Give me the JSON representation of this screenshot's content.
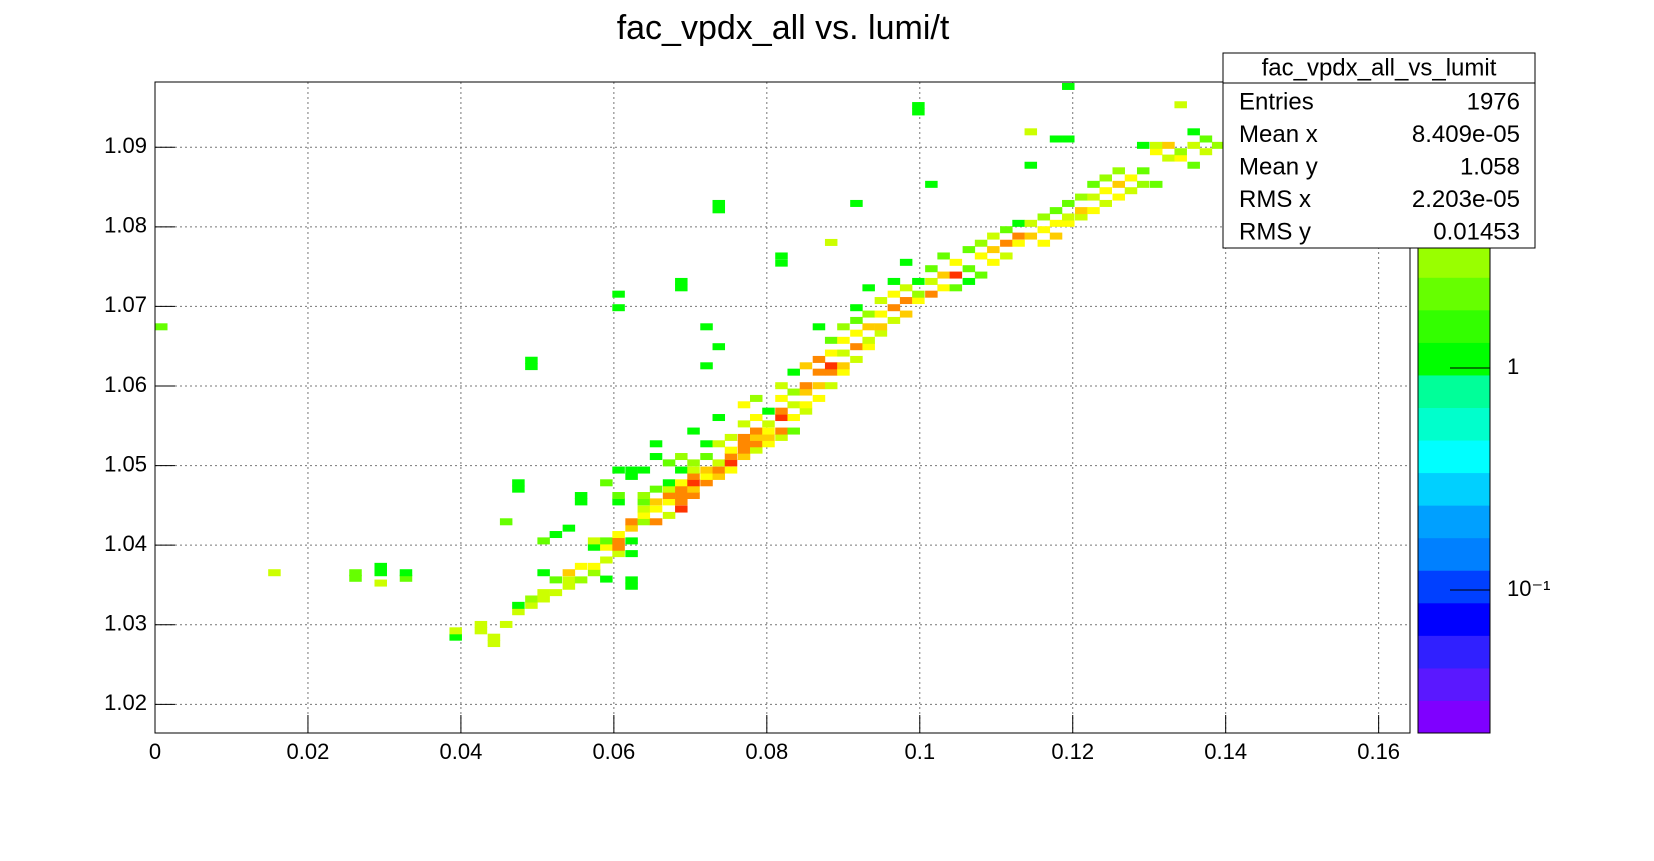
{
  "chart_data": {
    "type": "heatmap",
    "title": "fac_vpdx_all vs. lumi/t",
    "xlim": [
      0,
      0.1641
    ],
    "xticks": [
      0,
      0.02,
      0.04,
      0.06,
      0.08,
      0.1,
      0.12,
      0.14,
      0.16
    ],
    "ylim": [
      1.0164,
      1.0982
    ],
    "yticks": [
      1.02,
      1.03,
      1.04,
      1.05,
      1.06,
      1.07,
      1.08,
      1.09
    ],
    "grid": true,
    "zlog": true,
    "zlim": [
      0.0227,
      19.4
    ],
    "zticks": [
      {
        "value": 0.1,
        "label": "10⁻¹"
      },
      1
    ],
    "palette": [
      "#7f00ff",
      "#5a18ff",
      "#3020ff",
      "#0000ff",
      "#0040ff",
      "#0080ff",
      "#00a0ff",
      "#00d0ff",
      "#00ffff",
      "#00ffcc",
      "#00ff99",
      "#00ff00",
      "#33ff00",
      "#66ff00",
      "#99ff00",
      "#ccff00",
      "#ffff00",
      "#ffcc00",
      "#ff8800",
      "#ff3300"
    ],
    "x": [
      0,
      0.0148,
      0.0254,
      0.0254,
      0.0287,
      0.0287,
      0.0287,
      0.032,
      0.032,
      0.0385,
      0.0385,
      0.0418,
      0.0418,
      0.0435,
      0.0435,
      0.0451,
      0.0451,
      0.0467,
      0.0467,
      0.0467,
      0.0467,
      0.0484,
      0.0484,
      0.0484,
      0.0484,
      0.05,
      0.05,
      0.05,
      0.05,
      0.0516,
      0.0516,
      0.0516,
      0.0533,
      0.0533,
      0.0533,
      0.0533,
      0.0549,
      0.0549,
      0.0549,
      0.0549,
      0.0566,
      0.0566,
      0.0566,
      0.0566,
      0.0582,
      0.0582,
      0.0582,
      0.0582,
      0.0582,
      0.0598,
      0.0598,
      0.0598,
      0.0598,
      0.0598,
      0.0598,
      0.0598,
      0.0598,
      0.0598,
      0.0615,
      0.0615,
      0.0615,
      0.0615,
      0.0615,
      0.0615,
      0.0615,
      0.0615,
      0.0631,
      0.0631,
      0.0631,
      0.0631,
      0.0631,
      0.0631,
      0.0647,
      0.0647,
      0.0647,
      0.0647,
      0.0647,
      0.0647,
      0.0664,
      0.0664,
      0.0664,
      0.0664,
      0.0664,
      0.0664,
      0.068,
      0.068,
      0.068,
      0.068,
      0.068,
      0.068,
      0.068,
      0.068,
      0.068,
      0.0696,
      0.0696,
      0.0696,
      0.0696,
      0.0696,
      0.0696,
      0.0696,
      0.0713,
      0.0713,
      0.0713,
      0.0713,
      0.0713,
      0.0713,
      0.0713,
      0.0729,
      0.0729,
      0.0729,
      0.0729,
      0.0729,
      0.0729,
      0.0729,
      0.0729,
      0.0745,
      0.0745,
      0.0745,
      0.0745,
      0.0745,
      0.0762,
      0.0762,
      0.0762,
      0.0762,
      0.0762,
      0.0762,
      0.0778,
      0.0778,
      0.0778,
      0.0778,
      0.0778,
      0.0778,
      0.0794,
      0.0794,
      0.0794,
      0.0794,
      0.0794,
      0.0811,
      0.0811,
      0.0811,
      0.0811,
      0.0811,
      0.0811,
      0.0811,
      0.0811,
      0.0827,
      0.0827,
      0.0827,
      0.0827,
      0.0827,
      0.0843,
      0.0843,
      0.0843,
      0.0843,
      0.0843,
      0.086,
      0.086,
      0.086,
      0.086,
      0.086,
      0.0876,
      0.0876,
      0.0876,
      0.0876,
      0.0876,
      0.0876,
      0.0892,
      0.0892,
      0.0892,
      0.0892,
      0.0892,
      0.0909,
      0.0909,
      0.0909,
      0.0909,
      0.0909,
      0.0909,
      0.0925,
      0.0925,
      0.0925,
      0.0925,
      0.0925,
      0.0941,
      0.0941,
      0.0941,
      0.0941,
      0.0958,
      0.0958,
      0.0958,
      0.0958,
      0.0974,
      0.0974,
      0.0974,
      0.0974,
      0.099,
      0.099,
      0.099,
      0.099,
      0.099,
      0.1007,
      0.1007,
      0.1007,
      0.1007,
      0.1023,
      0.1023,
      0.1023,
      0.1039,
      0.1039,
      0.1039,
      0.1056,
      0.1056,
      0.1056,
      0.1072,
      0.1072,
      0.1072,
      0.1088,
      0.1088,
      0.1088,
      0.1105,
      0.1105,
      0.1105,
      0.1121,
      0.1121,
      0.1121,
      0.1137,
      0.1137,
      0.1137,
      0.1137,
      0.1154,
      0.1154,
      0.1154,
      0.117,
      0.117,
      0.117,
      0.117,
      0.1186,
      0.1186,
      0.1186,
      0.1186,
      0.1186,
      0.1203,
      0.1203,
      0.1203,
      0.1219,
      0.1219,
      0.1219,
      0.1235,
      0.1235,
      0.1235,
      0.1252,
      0.1252,
      0.1252,
      0.1268,
      0.1268,
      0.1284,
      0.1284,
      0.1284,
      0.1301,
      0.1301,
      0.1301,
      0.1317,
      0.1317,
      0.1333,
      0.1333,
      0.1333,
      0.135,
      0.135,
      0.135,
      0.1366,
      0.1366,
      0.1382
    ],
    "y": [
      1.067,
      1.0361,
      1.0354,
      1.0361,
      1.0348,
      1.0361,
      1.0369,
      1.0354,
      1.0361,
      1.028,
      1.0288,
      1.0288,
      1.0296,
      1.0272,
      1.028,
      1.0296,
      1.0425,
      1.0312,
      1.032,
      1.0466,
      1.0474,
      1.032,
      1.0328,
      1.062,
      1.0628,
      1.0328,
      1.0336,
      1.0361,
      1.0401,
      1.0336,
      1.0352,
      1.0409,
      1.0344,
      1.0352,
      1.0361,
      1.0417,
      1.0352,
      1.0369,
      1.045,
      1.0458,
      1.0361,
      1.0369,
      1.0393,
      1.0401,
      1.0353,
      1.0377,
      1.0393,
      1.0401,
      1.0474,
      1.0385,
      1.0393,
      1.0401,
      1.0409,
      1.045,
      1.0458,
      1.049,
      1.0694,
      1.0711,
      1.0344,
      1.0352,
      1.0385,
      1.0401,
      1.0417,
      1.0425,
      1.0482,
      1.049,
      1.0425,
      1.0433,
      1.0441,
      1.045,
      1.0458,
      1.049,
      1.0425,
      1.0441,
      1.045,
      1.0466,
      1.0507,
      1.0523,
      1.0433,
      1.045,
      1.0458,
      1.0466,
      1.0474,
      1.0499,
      1.0441,
      1.045,
      1.0458,
      1.0466,
      1.0474,
      1.049,
      1.0507,
      1.0719,
      1.0727,
      1.0458,
      1.0466,
      1.0474,
      1.0482,
      1.049,
      1.0499,
      1.0539,
      1.0474,
      1.0482,
      1.049,
      1.0507,
      1.0523,
      1.0621,
      1.067,
      1.0482,
      1.049,
      1.0499,
      1.0523,
      1.0556,
      1.0645,
      1.0817,
      1.0825,
      1.049,
      1.0499,
      1.0507,
      1.0515,
      1.0531,
      1.0507,
      1.0515,
      1.0523,
      1.0531,
      1.0548,
      1.0572,
      1.0515,
      1.0523,
      1.0531,
      1.0539,
      1.0556,
      1.058,
      1.0523,
      1.0531,
      1.0539,
      1.0548,
      1.0564,
      1.0531,
      1.0539,
      1.0556,
      1.0564,
      1.058,
      1.0596,
      1.075,
      1.0759,
      1.0539,
      1.0556,
      1.0572,
      1.0588,
      1.0613,
      1.0564,
      1.0572,
      1.0588,
      1.0596,
      1.0621,
      1.058,
      1.0596,
      1.0613,
      1.0629,
      1.067,
      1.0596,
      1.0613,
      1.0621,
      1.0637,
      1.0653,
      1.0776,
      1.0613,
      1.0621,
      1.0637,
      1.0653,
      1.067,
      1.0629,
      1.0645,
      1.0662,
      1.0678,
      1.0694,
      1.0825,
      1.0645,
      1.0653,
      1.067,
      1.0686,
      1.0719,
      1.0662,
      1.067,
      1.0686,
      1.0703,
      1.0678,
      1.0694,
      1.0711,
      1.0727,
      1.0686,
      1.0703,
      1.0719,
      1.0751,
      1.0703,
      1.0711,
      1.0727,
      1.094,
      1.0948,
      1.0711,
      1.0727,
      1.0743,
      1.0849,
      1.0719,
      1.0735,
      1.0759,
      1.0719,
      1.0735,
      1.0751,
      1.0727,
      1.0743,
      1.0767,
      1.0735,
      1.0759,
      1.0775,
      1.0751,
      1.0767,
      1.0784,
      1.0759,
      1.0775,
      1.0792,
      1.0775,
      1.0784,
      1.08,
      1.0784,
      1.08,
      1.0873,
      1.0915,
      1.0775,
      1.0792,
      1.0808,
      1.0784,
      1.08,
      1.0816,
      1.0906,
      1.08,
      1.0808,
      1.0825,
      1.0906,
      1.0972,
      1.0808,
      1.0816,
      1.0833,
      1.0816,
      1.0833,
      1.0849,
      1.0825,
      1.0841,
      1.0857,
      1.0833,
      1.0849,
      1.0866,
      1.0841,
      1.0857,
      1.0849,
      1.0866,
      1.0898,
      1.0849,
      1.089,
      1.0898,
      1.0882,
      1.0898,
      1.0882,
      1.089,
      1.0949,
      1.0873,
      1.0898,
      1.0915,
      1.089,
      1.0906,
      1.0898
    ],
    "values": [
      2,
      4,
      2,
      2,
      4,
      1,
      1,
      2,
      1,
      1,
      4,
      5,
      5,
      5,
      5,
      4,
      2,
      4,
      1,
      1,
      1,
      4,
      3,
      1,
      1,
      4,
      4,
      1,
      2,
      4,
      2,
      1,
      5,
      4,
      8,
      1,
      3,
      7,
      1,
      1,
      3,
      6,
      1,
      4,
      1,
      4,
      7,
      2,
      2,
      4,
      10,
      12,
      6,
      1,
      2,
      1,
      1,
      1,
      1,
      1,
      1,
      1,
      8,
      12,
      1,
      1,
      3,
      6,
      4,
      2,
      3,
      1,
      10,
      6,
      8,
      2,
      1,
      1,
      4,
      6,
      10,
      4,
      1,
      2,
      14,
      10,
      12,
      10,
      6,
      1,
      3,
      1,
      1,
      10,
      8,
      14,
      10,
      4,
      3,
      1,
      10,
      6,
      8,
      2,
      1,
      1,
      1,
      8,
      12,
      4,
      4,
      1,
      1,
      1,
      1,
      6,
      14,
      10,
      6,
      4,
      8,
      12,
      10,
      12,
      4,
      6,
      4,
      10,
      8,
      10,
      6,
      3,
      6,
      8,
      6,
      4,
      1,
      4,
      12,
      14,
      10,
      6,
      4,
      1,
      1,
      2,
      6,
      4,
      3,
      1,
      4,
      6,
      8,
      10,
      8,
      6,
      8,
      10,
      12,
      1,
      4,
      10,
      14,
      6,
      2,
      4,
      6,
      8,
      4,
      6,
      3,
      4,
      10,
      6,
      2,
      1,
      1,
      6,
      4,
      8,
      3,
      1,
      4,
      8,
      6,
      4,
      4,
      10,
      6,
      1,
      8,
      10,
      4,
      1,
      6,
      3,
      1,
      1,
      1,
      10,
      4,
      2,
      1,
      6,
      8,
      2,
      2,
      14,
      6,
      1,
      2,
      2,
      2,
      6,
      3,
      6,
      8,
      4,
      4,
      10,
      2,
      6,
      10,
      1,
      8,
      4,
      1,
      4,
      6,
      6,
      3,
      8,
      6,
      2,
      1,
      6,
      4,
      2,
      1,
      1,
      4,
      8,
      3,
      6,
      4,
      2,
      4,
      6,
      3,
      6,
      8,
      3,
      4,
      6,
      3,
      2,
      1,
      2,
      6,
      4,
      4,
      8,
      6,
      3,
      4,
      2,
      4,
      1,
      4,
      2,
      3
    ],
    "stats": {
      "title": "fac_vpdx_all_vs_lumit",
      "rows": [
        {
          "label": "Entries",
          "value": "1976"
        },
        {
          "label": "Mean x",
          "value": "8.409e-05"
        },
        {
          "label": "Mean y",
          "value": "1.058"
        },
        {
          "label": "RMS x",
          "value": "2.203e-05"
        },
        {
          "label": "RMS y",
          "value": "0.01453"
        }
      ]
    }
  }
}
